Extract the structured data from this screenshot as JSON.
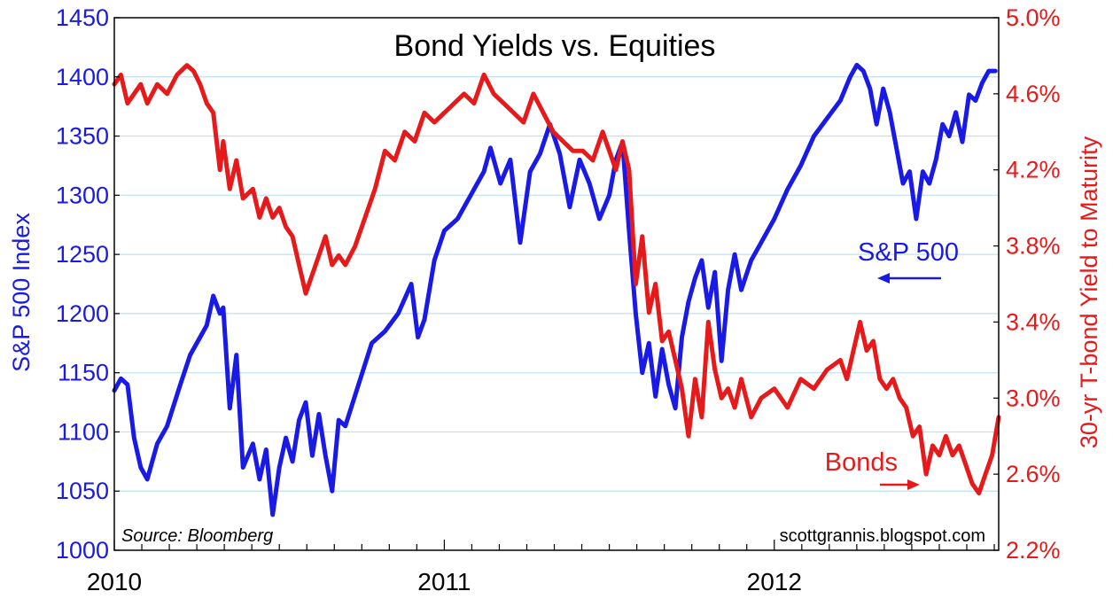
{
  "chart_data": {
    "type": "line",
    "title": "Bond Yields vs. Equities",
    "source_note": "Source: Bloomberg",
    "credit_note": "scottgrannis.blogspot.com",
    "x_labels": [
      "2010",
      "2011",
      "2012"
    ],
    "x_range": [
      2010.0,
      2012.68
    ],
    "y_left": {
      "label": "S&P 500 Index",
      "ticks": [
        "1450",
        "1400",
        "1350",
        "1300",
        "1250",
        "1200",
        "1150",
        "1100",
        "1050",
        "1000"
      ],
      "range": [
        1000,
        1450
      ],
      "color": "#1a1ae6"
    },
    "y_right": {
      "label": "30-yr T-bond Yield to Maturity",
      "ticks": [
        "5.0%",
        "4.6%",
        "4.2%",
        "3.8%",
        "3.4%",
        "3.0%",
        "2.6%",
        "2.2%"
      ],
      "range": [
        2.2,
        5.0
      ],
      "color": "#e61a1a"
    },
    "grid": true,
    "annotations": {
      "sp500": "S&P 500",
      "bonds": "Bonds"
    },
    "series": [
      {
        "name": "S&P 500",
        "axis": "left",
        "color": "#1a1ae6",
        "x": [
          2010.0,
          2010.02,
          2010.04,
          2010.06,
          2010.08,
          2010.1,
          2010.13,
          2010.16,
          2010.2,
          2010.23,
          2010.26,
          2010.28,
          2010.3,
          2010.32,
          2010.33,
          2010.35,
          2010.37,
          2010.39,
          2010.42,
          2010.44,
          2010.46,
          2010.48,
          2010.5,
          2010.52,
          2010.54,
          2010.56,
          2010.58,
          2010.6,
          2010.62,
          2010.64,
          2010.66,
          2010.68,
          2010.7,
          2010.74,
          2010.78,
          2010.82,
          2010.86,
          2010.9,
          2010.92,
          2010.94,
          2010.97,
          2011.0,
          2011.04,
          2011.08,
          2011.12,
          2011.14,
          2011.17,
          2011.2,
          2011.23,
          2011.26,
          2011.29,
          2011.32,
          2011.35,
          2011.38,
          2011.41,
          2011.44,
          2011.47,
          2011.5,
          2011.52,
          2011.54,
          2011.56,
          2011.58,
          2011.6,
          2011.62,
          2011.64,
          2011.66,
          2011.68,
          2011.7,
          2011.72,
          2011.74,
          2011.76,
          2011.78,
          2011.8,
          2011.82,
          2011.84,
          2011.86,
          2011.88,
          2011.9,
          2011.93,
          2011.96,
          2012.0,
          2012.04,
          2012.08,
          2012.12,
          2012.16,
          2012.2,
          2012.23,
          2012.25,
          2012.27,
          2012.29,
          2012.31,
          2012.33,
          2012.35,
          2012.37,
          2012.39,
          2012.41,
          2012.43,
          2012.45,
          2012.47,
          2012.49,
          2012.51,
          2012.53,
          2012.55,
          2012.57,
          2012.59,
          2012.61,
          2012.63,
          2012.65,
          2012.67
        ],
        "values": [
          1135,
          1145,
          1140,
          1095,
          1070,
          1060,
          1090,
          1105,
          1140,
          1165,
          1180,
          1190,
          1215,
          1200,
          1205,
          1120,
          1165,
          1070,
          1090,
          1060,
          1085,
          1030,
          1070,
          1095,
          1075,
          1110,
          1125,
          1080,
          1115,
          1080,
          1050,
          1110,
          1105,
          1140,
          1175,
          1185,
          1200,
          1225,
          1180,
          1195,
          1245,
          1270,
          1280,
          1300,
          1320,
          1340,
          1310,
          1330,
          1260,
          1320,
          1335,
          1360,
          1335,
          1290,
          1330,
          1310,
          1280,
          1300,
          1330,
          1345,
          1270,
          1200,
          1150,
          1175,
          1130,
          1170,
          1140,
          1120,
          1180,
          1210,
          1230,
          1245,
          1205,
          1235,
          1160,
          1220,
          1250,
          1220,
          1245,
          1260,
          1280,
          1305,
          1325,
          1350,
          1365,
          1380,
          1400,
          1410,
          1405,
          1390,
          1360,
          1390,
          1370,
          1340,
          1310,
          1320,
          1280,
          1320,
          1310,
          1330,
          1360,
          1350,
          1370,
          1345,
          1385,
          1380,
          1395,
          1405,
          1405
        ]
      },
      {
        "name": "Bonds",
        "axis": "right",
        "color": "#e61a1a",
        "x": [
          2010.0,
          2010.02,
          2010.04,
          2010.06,
          2010.08,
          2010.1,
          2010.13,
          2010.16,
          2010.19,
          2010.22,
          2010.24,
          2010.26,
          2010.28,
          2010.3,
          2010.32,
          2010.33,
          2010.35,
          2010.37,
          2010.39,
          2010.42,
          2010.44,
          2010.46,
          2010.48,
          2010.5,
          2010.52,
          2010.54,
          2010.56,
          2010.58,
          2010.6,
          2010.62,
          2010.64,
          2010.66,
          2010.68,
          2010.7,
          2010.73,
          2010.76,
          2010.79,
          2010.82,
          2010.85,
          2010.88,
          2010.91,
          2010.94,
          2010.97,
          2011.0,
          2011.03,
          2011.06,
          2011.09,
          2011.12,
          2011.15,
          2011.18,
          2011.21,
          2011.24,
          2011.27,
          2011.3,
          2011.33,
          2011.36,
          2011.39,
          2011.42,
          2011.45,
          2011.48,
          2011.5,
          2011.52,
          2011.54,
          2011.56,
          2011.58,
          2011.6,
          2011.62,
          2011.64,
          2011.66,
          2011.68,
          2011.7,
          2011.72,
          2011.74,
          2011.76,
          2011.78,
          2011.8,
          2011.82,
          2011.84,
          2011.86,
          2011.88,
          2011.9,
          2011.93,
          2011.96,
          2012.0,
          2012.04,
          2012.08,
          2012.12,
          2012.16,
          2012.2,
          2012.22,
          2012.24,
          2012.26,
          2012.28,
          2012.3,
          2012.32,
          2012.34,
          2012.36,
          2012.38,
          2012.4,
          2012.42,
          2012.44,
          2012.46,
          2012.48,
          2012.5,
          2012.52,
          2012.54,
          2012.56,
          2012.58,
          2012.6,
          2012.62,
          2012.64,
          2012.66,
          2012.68
        ],
        "values": [
          4.65,
          4.7,
          4.55,
          4.6,
          4.65,
          4.55,
          4.65,
          4.6,
          4.7,
          4.75,
          4.72,
          4.65,
          4.55,
          4.5,
          4.2,
          4.35,
          4.1,
          4.25,
          4.05,
          4.1,
          3.95,
          4.05,
          3.95,
          4.0,
          3.9,
          3.85,
          3.7,
          3.55,
          3.65,
          3.75,
          3.85,
          3.7,
          3.75,
          3.7,
          3.8,
          3.95,
          4.1,
          4.3,
          4.25,
          4.4,
          4.35,
          4.5,
          4.45,
          4.5,
          4.55,
          4.6,
          4.55,
          4.7,
          4.6,
          4.55,
          4.5,
          4.45,
          4.6,
          4.5,
          4.4,
          4.35,
          4.3,
          4.3,
          4.25,
          4.4,
          4.3,
          4.2,
          4.35,
          4.2,
          3.6,
          3.85,
          3.45,
          3.6,
          3.3,
          3.35,
          3.2,
          3.05,
          2.8,
          3.1,
          2.9,
          3.4,
          3.15,
          3.0,
          3.05,
          2.95,
          3.1,
          2.9,
          3.0,
          3.05,
          2.95,
          3.1,
          3.05,
          3.15,
          3.2,
          3.1,
          3.25,
          3.4,
          3.25,
          3.3,
          3.1,
          3.05,
          3.1,
          3.0,
          2.95,
          2.8,
          2.85,
          2.6,
          2.75,
          2.7,
          2.8,
          2.7,
          2.75,
          2.65,
          2.55,
          2.5,
          2.6,
          2.7,
          2.9
        ]
      }
    ]
  }
}
